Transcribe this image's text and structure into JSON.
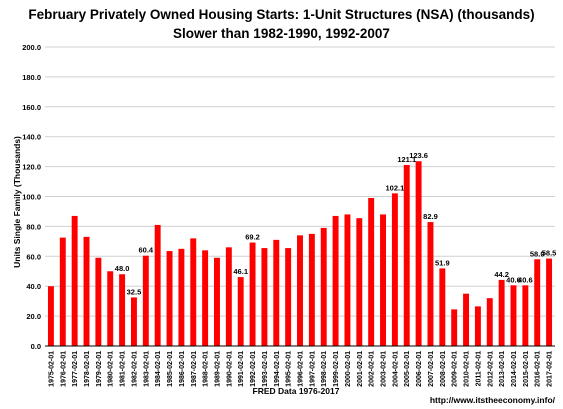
{
  "chart_data": {
    "type": "bar",
    "title": "February Privately Owned Housing Starts: 1-Unit Structures (NSA) (thousands)",
    "subtitle": "Slower than 1982-1990, 1992-2007",
    "ylabel": "Units Single Family (Thousands)",
    "xlabel": "FRED  Data 1976-2017",
    "source": "http://www.itstheeconomy.info/",
    "ylim": [
      0,
      200
    ],
    "y_ticks": [
      "0.0",
      "20.0",
      "40.0",
      "60.0",
      "80.0",
      "100.0",
      "120.0",
      "140.0",
      "160.0",
      "180.0",
      "200.0"
    ],
    "grid": true,
    "bar_color": "#ff0000",
    "categories": [
      "1975-02-01",
      "1976-02-01",
      "1977-02-01",
      "1978-02-01",
      "1979-02-01",
      "1980-02-01",
      "1981-02-01",
      "1982-02-01",
      "1983-02-01",
      "1984-02-01",
      "1985-02-01",
      "1986-02-01",
      "1987-02-01",
      "1988-02-01",
      "1989-02-01",
      "1990-02-01",
      "1991-02-01",
      "1992-02-01",
      "1993-02-01",
      "1994-02-01",
      "1995-02-01",
      "1996-02-01",
      "1997-02-01",
      "1998-02-01",
      "1999-02-01",
      "2000-02-01",
      "2001-02-01",
      "2002-02-01",
      "2003-02-01",
      "2004-02-01",
      "2005-02-01",
      "2006-02-01",
      "2007-02-01",
      "2008-02-01",
      "2009-02-01",
      "2010-02-01",
      "2011-02-01",
      "2012-02-01",
      "2013-02-01",
      "2014-02-01",
      "2015-02-01",
      "2016-02-01",
      "2017-02-01"
    ],
    "values": [
      40,
      72.5,
      87,
      73,
      59,
      50,
      48.0,
      32.5,
      60.4,
      81,
      63.5,
      65,
      72,
      64,
      59,
      66,
      46.1,
      69.2,
      65.5,
      71,
      65.5,
      74,
      75,
      79,
      87,
      88,
      85.5,
      99,
      88,
      102.1,
      121.1,
      123.6,
      82.9,
      51.9,
      24.5,
      35,
      26.5,
      32,
      44.2,
      40.6,
      40.6,
      58.0,
      58.5
    ],
    "labels": [
      null,
      null,
      null,
      null,
      null,
      null,
      "48.0",
      "32.5",
      "60.4",
      null,
      null,
      null,
      null,
      null,
      null,
      null,
      "46.1",
      "69.2",
      null,
      null,
      null,
      null,
      null,
      null,
      null,
      null,
      null,
      null,
      null,
      "102.1",
      "121.1",
      "123.6",
      "82.9",
      "51.9",
      null,
      null,
      null,
      null,
      "44.2",
      "40.6",
      "40.6",
      "58.0",
      "58.5"
    ]
  }
}
